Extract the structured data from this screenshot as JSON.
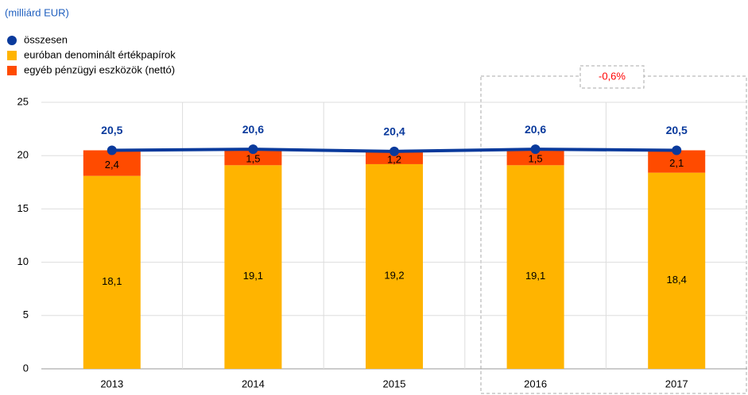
{
  "chart_data": {
    "type": "bar",
    "stacked": true,
    "subtitle": "(milliárd EUR)",
    "categories": [
      "2013",
      "2014",
      "2015",
      "2016",
      "2017"
    ],
    "series": [
      {
        "name": "összesen",
        "type": "line",
        "color": "#0a3a9c",
        "values": [
          20.5,
          20.6,
          20.4,
          20.6,
          20.5
        ],
        "value_labels": [
          "20,5",
          "20,6",
          "20,4",
          "20,6",
          "20,5"
        ]
      },
      {
        "name": "euróban denominált értékpapírok",
        "type": "bar",
        "color": "#ffb400",
        "values": [
          18.1,
          19.1,
          19.2,
          19.1,
          18.4
        ],
        "value_labels": [
          "18,1",
          "19,1",
          "19,2",
          "19,1",
          "18,4"
        ]
      },
      {
        "name": "egyéb pénzügyi eszközök (nettó)",
        "type": "bar",
        "color": "#ff4b00",
        "values": [
          2.4,
          1.5,
          1.2,
          1.5,
          2.1
        ],
        "value_labels": [
          "2,4",
          "1,5",
          "1,2",
          "1,5",
          "2,1"
        ]
      }
    ],
    "annotation": "-0,6%",
    "ylim": [
      0,
      25
    ],
    "yticks": [
      0,
      5,
      10,
      15,
      20,
      25
    ],
    "grid": true,
    "legend": "top-left"
  }
}
